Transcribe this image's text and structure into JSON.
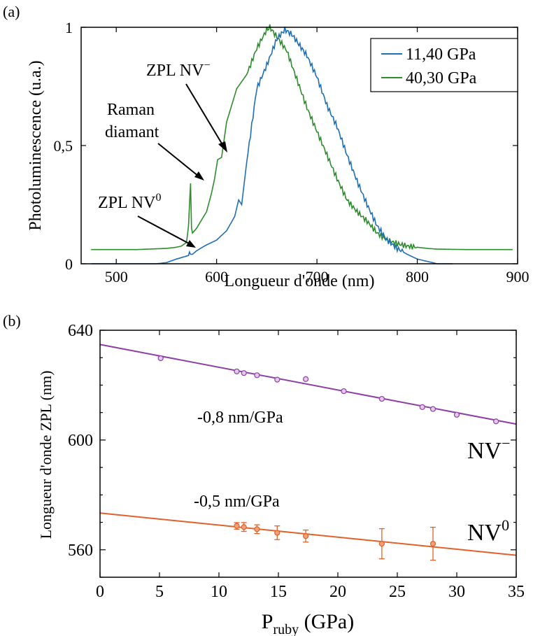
{
  "chart_data": [
    {
      "panel_label": "(a)",
      "type": "line",
      "xlabel": "Longueur d'onde (nm)",
      "ylabel": "Photoluminescence (u.a.)",
      "xlim": [
        465,
        900
      ],
      "ylim": [
        0,
        1
      ],
      "x_ticks": [
        500,
        600,
        700,
        800,
        900
      ],
      "y_ticks": [
        0,
        0.5,
        1
      ],
      "y_tick_labels": [
        "0",
        "0,5",
        "1"
      ],
      "legend_position": "top-right",
      "series": [
        {
          "name": "11,40 GPa",
          "color": "#1f6fb5",
          "x": [
            475,
            540,
            550,
            560,
            568,
            572,
            573,
            574,
            576,
            580,
            590,
            600,
            610,
            618,
            622,
            625,
            630,
            640,
            650,
            660,
            668,
            675,
            690,
            700,
            710,
            720,
            730,
            740,
            750,
            760,
            770,
            780,
            790,
            800,
            810,
            820,
            830,
            835
          ],
          "y": [
            0.0,
            0.0,
            0.005,
            0.02,
            0.03,
            0.035,
            0.05,
            0.04,
            0.04,
            0.055,
            0.08,
            0.1,
            0.14,
            0.2,
            0.27,
            0.25,
            0.43,
            0.74,
            0.84,
            0.95,
            0.99,
            0.97,
            0.88,
            0.79,
            0.67,
            0.58,
            0.46,
            0.35,
            0.25,
            0.16,
            0.1,
            0.065,
            0.04,
            0.02,
            0.01,
            0.0,
            0.0,
            0.0
          ]
        },
        {
          "name": "40,30 GPa",
          "color": "#2e8b2e",
          "x": [
            475,
            520,
            550,
            560,
            565,
            570,
            572,
            574,
            575,
            576,
            580,
            590,
            595,
            598,
            601,
            605,
            610,
            620,
            630,
            640,
            650,
            653,
            660,
            670,
            680,
            690,
            700,
            710,
            720,
            730,
            740,
            750,
            760,
            770,
            780,
            790,
            800,
            810,
            820,
            850,
            895
          ],
          "y": [
            0.06,
            0.06,
            0.065,
            0.07,
            0.075,
            0.09,
            0.16,
            0.34,
            0.15,
            0.13,
            0.15,
            0.22,
            0.3,
            0.36,
            0.44,
            0.45,
            0.6,
            0.74,
            0.8,
            0.91,
            0.99,
            1.0,
            0.96,
            0.9,
            0.78,
            0.66,
            0.56,
            0.46,
            0.36,
            0.27,
            0.22,
            0.18,
            0.13,
            0.1,
            0.085,
            0.075,
            0.07,
            0.065,
            0.062,
            0.06,
            0.06
          ]
        }
      ],
      "annotations": [
        {
          "text": "ZPL NV",
          "superscript": "−",
          "x": 600,
          "y": 0.46
        },
        {
          "text": "Raman",
          "text2": "diamant",
          "x": 573,
          "y": 0.34
        },
        {
          "text": "ZPL NV",
          "superscript": "0",
          "x": 568,
          "y": 0.07
        }
      ]
    },
    {
      "panel_label": "(b)",
      "type": "scatter",
      "xlabel": "P",
      "xlabel_sub": "ruby",
      "xlabel_unit": " (GPa)",
      "ylabel": "Longueur d'onde ZPL (nm)",
      "xlim": [
        0,
        35
      ],
      "ylim": [
        550,
        640
      ],
      "x_ticks": [
        0,
        5,
        10,
        15,
        20,
        25,
        30,
        35
      ],
      "y_ticks": [
        560,
        600,
        640
      ],
      "series": [
        {
          "name": "NV−",
          "label_text": "NV",
          "label_sup": "−",
          "slope_label": "-0,8 nm/GPa",
          "color": "#8e3fa6",
          "x": [
            5.1,
            11.5,
            12.1,
            13.2,
            14.9,
            17.3,
            20.5,
            23.7,
            27.1,
            28.0,
            30.0,
            33.3
          ],
          "y": [
            629.8,
            625.0,
            624.4,
            623.6,
            622.0,
            622.2,
            617.8,
            615.0,
            612.0,
            611.3,
            609.2,
            606.8
          ],
          "err": [],
          "fit": {
            "x": [
              0,
              35
            ],
            "y": [
              634.8,
              605.8
            ]
          }
        },
        {
          "name": "NV0",
          "label_text": "NV",
          "label_sup": "0",
          "slope_label": "-0,5 nm/GPa",
          "color": "#e0622a",
          "x": [
            11.5,
            12.1,
            13.2,
            14.9,
            17.3,
            23.7,
            28.0
          ],
          "y": [
            568.7,
            568.3,
            567.5,
            566.2,
            565.0,
            562.2,
            562.2
          ],
          "err": [
            1.2,
            1.6,
            1.6,
            2.5,
            2.2,
            5.5,
            6.0
          ],
          "fit": {
            "x": [
              0,
              35
            ],
            "y": [
              573.4,
              558.0
            ]
          }
        }
      ]
    }
  ]
}
